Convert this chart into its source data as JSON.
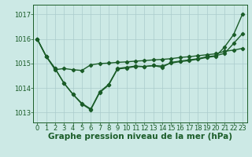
{
  "background_color": "#cce9e5",
  "grid_color": "#aacccc",
  "line_color": "#1a5c28",
  "xlabel": "Graphe pression niveau de la mer (hPa)",
  "ylim": [
    1012.6,
    1017.4
  ],
  "xlim": [
    -0.5,
    23.5
  ],
  "yticks": [
    1013,
    1014,
    1015,
    1016,
    1017
  ],
  "xticks": [
    0,
    1,
    2,
    3,
    4,
    5,
    6,
    7,
    8,
    9,
    10,
    11,
    12,
    13,
    14,
    15,
    16,
    17,
    18,
    19,
    20,
    21,
    22,
    23
  ],
  "line1_x": [
    0,
    1,
    2,
    3,
    4,
    5,
    6,
    7,
    8,
    9,
    10,
    11,
    12,
    13,
    14,
    15,
    16,
    17,
    18,
    19,
    20,
    21,
    22,
    23
  ],
  "line1_y": [
    1016.0,
    1015.3,
    1014.75,
    1014.8,
    1014.75,
    1014.72,
    1014.95,
    1015.0,
    1015.02,
    1015.05,
    1015.07,
    1015.1,
    1015.12,
    1015.15,
    1015.17,
    1015.2,
    1015.25,
    1015.28,
    1015.32,
    1015.36,
    1015.4,
    1015.5,
    1015.55,
    1015.62
  ],
  "line2_x": [
    0,
    1,
    2,
    3,
    4,
    5,
    6,
    7,
    8,
    9,
    10,
    11,
    12,
    13,
    14,
    15,
    16,
    17,
    18,
    19,
    20,
    21,
    22,
    23
  ],
  "line2_y": [
    1016.0,
    1015.3,
    1014.8,
    1014.2,
    1013.75,
    1013.38,
    1013.15,
    1013.85,
    1014.15,
    1014.8,
    1014.85,
    1014.9,
    1014.88,
    1014.92,
    1014.85,
    1015.05,
    1015.1,
    1015.15,
    1015.2,
    1015.28,
    1015.32,
    1015.42,
    1015.82,
    1016.22
  ],
  "line3_x": [
    0,
    1,
    2,
    3,
    4,
    5,
    6,
    7,
    8,
    9,
    10,
    11,
    12,
    13,
    14,
    15,
    16,
    17,
    18,
    19,
    20,
    21,
    22,
    23
  ],
  "line3_y": [
    1016.0,
    1015.3,
    1014.8,
    1014.2,
    1013.75,
    1013.35,
    1013.12,
    1013.82,
    1014.12,
    1014.78,
    1014.82,
    1014.88,
    1014.88,
    1014.92,
    1014.9,
    1015.02,
    1015.08,
    1015.12,
    1015.18,
    1015.25,
    1015.3,
    1015.68,
    1016.18,
    1017.02
  ],
  "xlabel_fontsize": 7.5,
  "tick_fontsize": 6.0,
  "marker": "D",
  "markersize": 2.2,
  "linewidth": 1.0
}
